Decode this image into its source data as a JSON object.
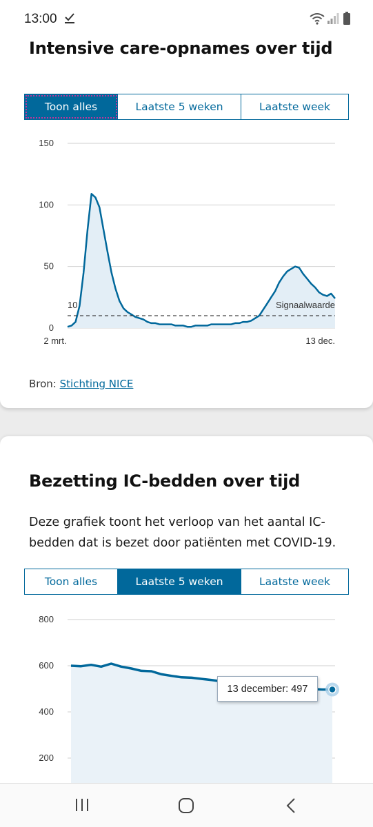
{
  "status_bar": {
    "time": "13:00"
  },
  "section1": {
    "title": "Intensive care-opnames over tijd",
    "tabs": [
      "Toon alles",
      "Laatste 5 weken",
      "Laatste week"
    ],
    "active_tab": "Toon alles",
    "source_prefix": "Bron: ",
    "source_link": "Stichting NICE"
  },
  "section2": {
    "title": "Bezetting IC-bedden over tijd",
    "description": "Deze grafiek toont het verloop van het aantal IC-bedden dat is bezet door patiënten met COVID-19.",
    "tabs": [
      "Toon alles",
      "Laatste 5 weken",
      "Laatste week"
    ],
    "active_tab": "Laatste 5 weken",
    "tooltip": "13 december: 497"
  },
  "chart_data": [
    {
      "type": "area",
      "ylim": [
        0,
        150
      ],
      "yticks": [
        "0",
        "50",
        "100",
        "150"
      ],
      "xticks": [
        "2 mrt.",
        "13 dec."
      ],
      "threshold": {
        "value": 10,
        "label": "Signaalwaarde"
      },
      "grid": true,
      "series": [
        {
          "values": [
            1,
            2,
            5,
            18,
            45,
            80,
            109,
            106,
            98,
            80,
            62,
            45,
            32,
            22,
            16,
            13,
            11,
            9,
            8,
            7,
            5,
            4,
            4,
            3,
            3,
            3,
            3,
            2,
            2,
            2,
            1,
            1,
            2,
            2,
            2,
            2,
            3,
            3,
            3,
            3,
            3,
            3,
            4,
            4,
            5,
            5,
            6,
            8,
            10,
            15,
            20,
            25,
            30,
            37,
            42,
            46,
            48,
            50,
            49,
            44,
            40,
            36,
            33,
            29,
            27,
            26,
            28,
            24
          ]
        }
      ]
    },
    {
      "type": "area",
      "ylim": [
        0,
        800
      ],
      "yticks": [
        "200",
        "400",
        "600",
        "800"
      ],
      "grid": true,
      "series": [
        {
          "values": [
            600,
            598,
            604,
            596,
            609,
            596,
            588,
            578,
            576,
            563,
            556,
            550,
            548,
            543,
            538,
            532,
            526,
            522,
            518,
            513,
            508,
            505,
            502,
            500,
            499,
            497,
            497
          ]
        }
      ]
    }
  ]
}
